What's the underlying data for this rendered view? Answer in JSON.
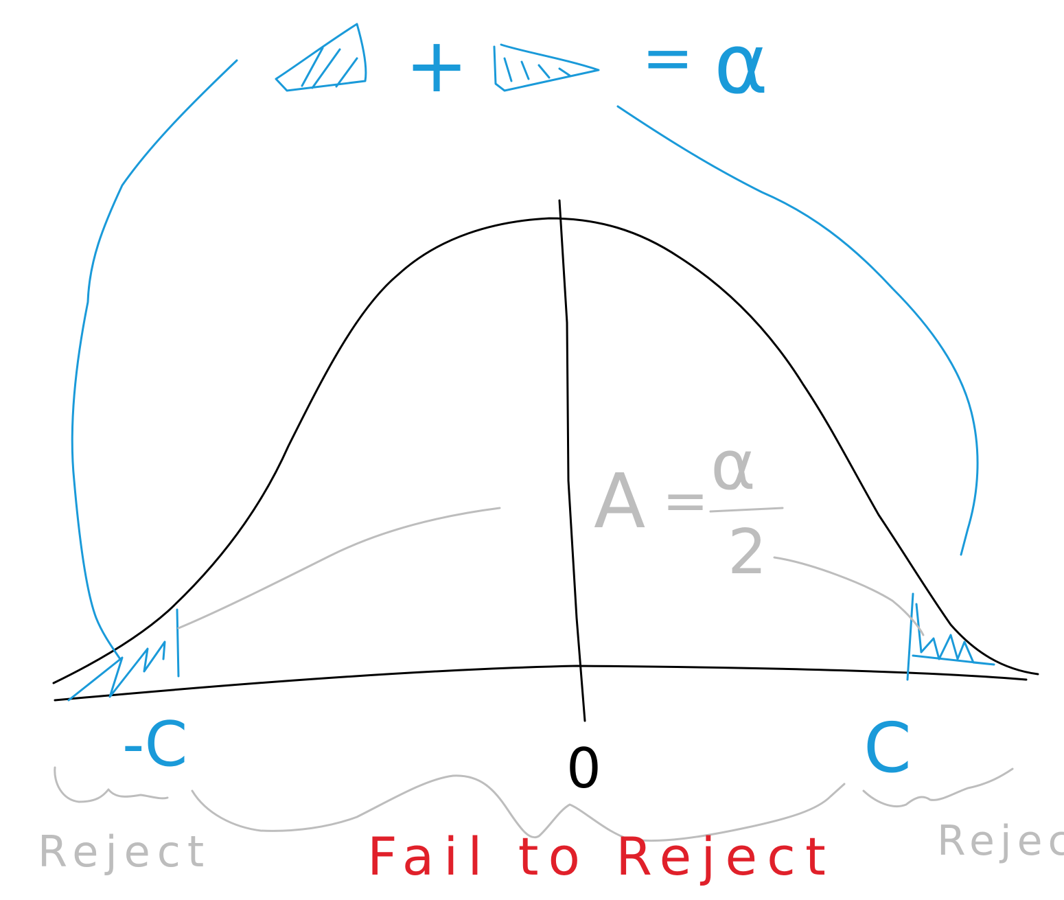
{
  "equation": {
    "plus": "+",
    "equals": "=",
    "alpha": "α"
  },
  "tail_area": {
    "A": "A",
    "equals": "=",
    "numerator": "α",
    "denominator": "2"
  },
  "axis": {
    "left_critical": "-C",
    "center": "0",
    "right_critical": "C"
  },
  "regions": {
    "left": "Reject",
    "middle": "Fail to Reject",
    "right": "Reject"
  },
  "colors": {
    "curve": "#000000",
    "annotation_blue": "#1a9ad9",
    "annotation_gray": "#bdbdbd",
    "fail_red": "#e0202a"
  }
}
